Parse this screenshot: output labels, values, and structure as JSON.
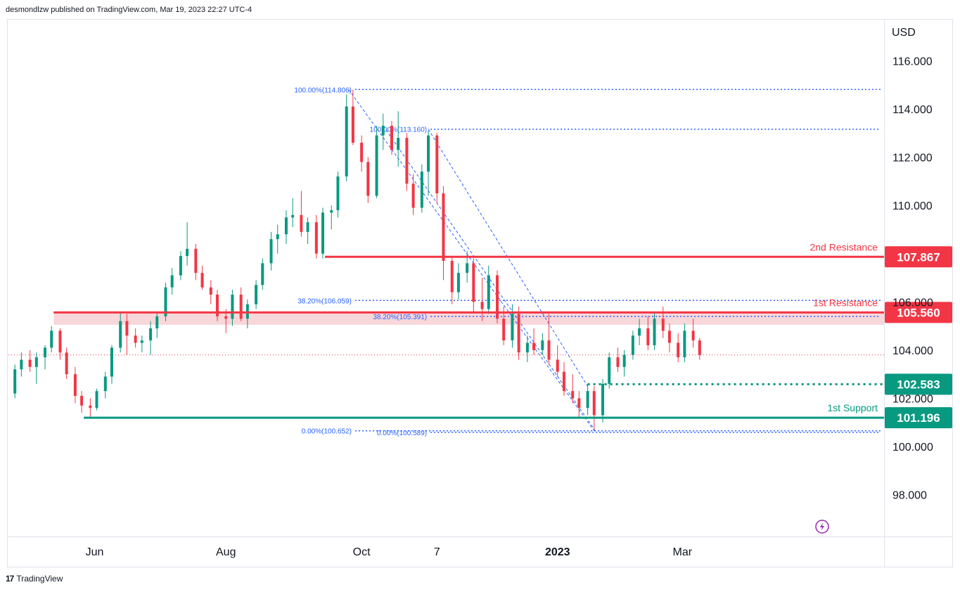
{
  "header": {
    "publish_line": "desmondlzw published on TradingView.com, Mar 19, 2023 22:27 UTC-4"
  },
  "footer": {
    "brand": "TradingView",
    "logo_icon": "tradingview-logo-icon"
  },
  "colors": {
    "up": "#089981",
    "down": "#f23645",
    "resistance": "#f23645",
    "support": "#089981",
    "fib": "#2962ff",
    "zone": "#f8d7da"
  },
  "chart_data": {
    "type": "candlestick",
    "currency_label": "USD",
    "ylim": [
      96.3,
      117.7
    ],
    "y_ticks": [
      {
        "value": 116,
        "label": "116.000"
      },
      {
        "value": 114,
        "label": "114.000"
      },
      {
        "value": 112,
        "label": "112.000"
      },
      {
        "value": 110,
        "label": "110.000"
      },
      {
        "value": 106,
        "label": "106.000"
      },
      {
        "value": 104,
        "label": "104.000"
      },
      {
        "value": 102,
        "label": "102.000"
      },
      {
        "value": 100,
        "label": "100.000"
      },
      {
        "value": 98,
        "label": "98.000"
      }
    ],
    "x_ticks": [
      {
        "date": "2022-06-01",
        "label": "Jun"
      },
      {
        "date": "2022-08-01",
        "label": "Aug"
      },
      {
        "date": "2022-10-03",
        "label": "Oct"
      },
      {
        "date": "2022-11-07",
        "label": "7"
      },
      {
        "date": "2023-01-02",
        "label": "2023",
        "bold": true
      },
      {
        "date": "2023-03-01",
        "label": "Mar"
      }
    ],
    "levels": [
      {
        "name": "2nd Resistance",
        "value": 107.867,
        "kind": "resistance",
        "start": "2022-09-16"
      },
      {
        "name": "1st Resistance",
        "value": 105.56,
        "kind": "resistance",
        "start": "2022-05-13",
        "zone_low": 105.05
      },
      {
        "name": "",
        "value": 102.583,
        "kind": "support-dotted",
        "start": "2023-01-16"
      },
      {
        "name": "1st Support",
        "value": 101.196,
        "kind": "support",
        "start": "2022-05-27"
      }
    ],
    "current_price": 103.8,
    "fib_labels": [
      {
        "text": "100.00%(114.806)",
        "value": 114.806,
        "start": "2022-09-30"
      },
      {
        "text": "38.20%(106.059)",
        "value": 106.059,
        "start": "2022-09-30"
      },
      {
        "text": "0.00%(100.652)",
        "value": 100.652,
        "start": "2022-09-30"
      },
      {
        "text": "100.00%(113.160)",
        "value": 113.16,
        "start": "2022-11-04"
      },
      {
        "text": "38.20%(105.391)",
        "value": 105.391,
        "start": "2022-11-04"
      },
      {
        "text": "0.00%(100.589)",
        "value": 100.589,
        "start": "2022-11-04"
      }
    ],
    "fib_lines": [
      {
        "from": [
          "2022-09-27",
          114.806
        ],
        "to": [
          "2023-01-19",
          100.652
        ]
      },
      {
        "from": [
          "2022-10-13",
          113.3
        ],
        "to": [
          "2023-01-20",
          100.6
        ]
      },
      {
        "from": [
          "2022-11-03",
          113.16
        ],
        "to": [
          "2023-01-16",
          102.5
        ]
      }
    ],
    "candles": [
      [
        "2022-04-25",
        102.2,
        103.4,
        102.0,
        103.2
      ],
      [
        "2022-04-28",
        103.2,
        103.9,
        102.9,
        103.6
      ],
      [
        "2022-05-02",
        103.6,
        104.0,
        103.1,
        103.3
      ],
      [
        "2022-05-05",
        103.3,
        103.9,
        102.6,
        103.7
      ],
      [
        "2022-05-09",
        103.7,
        104.2,
        103.2,
        104.1
      ],
      [
        "2022-05-12",
        104.1,
        105.0,
        103.9,
        104.8
      ],
      [
        "2022-05-16",
        104.8,
        104.9,
        103.6,
        103.9
      ],
      [
        "2022-05-19",
        103.9,
        104.1,
        102.8,
        103.0
      ],
      [
        "2022-05-23",
        103.0,
        103.3,
        101.8,
        102.1
      ],
      [
        "2022-05-26",
        102.1,
        102.3,
        101.4,
        101.7
      ],
      [
        "2022-05-30",
        101.7,
        102.0,
        101.2,
        101.6
      ],
      [
        "2022-06-02",
        101.6,
        102.4,
        101.5,
        102.3
      ],
      [
        "2022-06-06",
        102.3,
        103.1,
        102.0,
        102.9
      ],
      [
        "2022-06-09",
        102.9,
        104.2,
        102.6,
        104.1
      ],
      [
        "2022-06-13",
        104.1,
        105.6,
        103.9,
        105.2
      ],
      [
        "2022-06-16",
        105.2,
        105.5,
        103.8,
        104.6
      ],
      [
        "2022-06-20",
        104.6,
        104.9,
        104.1,
        104.3
      ],
      [
        "2022-06-23",
        104.3,
        104.6,
        103.9,
        104.4
      ],
      [
        "2022-06-27",
        104.4,
        105.2,
        103.8,
        104.9
      ],
      [
        "2022-06-30",
        104.9,
        105.6,
        104.5,
        105.4
      ],
      [
        "2022-07-04",
        105.4,
        106.8,
        105.2,
        106.6
      ],
      [
        "2022-07-07",
        106.6,
        107.4,
        106.3,
        107.1
      ],
      [
        "2022-07-11",
        107.1,
        108.1,
        106.9,
        107.9
      ],
      [
        "2022-07-14",
        107.9,
        109.3,
        107.5,
        108.2
      ],
      [
        "2022-07-18",
        108.2,
        108.4,
        106.9,
        107.2
      ],
      [
        "2022-07-21",
        107.2,
        107.5,
        106.5,
        106.6
      ],
      [
        "2022-07-25",
        106.6,
        106.9,
        105.9,
        106.3
      ],
      [
        "2022-07-28",
        106.3,
        106.5,
        105.2,
        105.4
      ],
      [
        "2022-08-01",
        105.4,
        105.7,
        104.7,
        105.3
      ],
      [
        "2022-08-04",
        105.3,
        106.5,
        105.0,
        106.3
      ],
      [
        "2022-08-08",
        106.3,
        106.6,
        105.2,
        105.3
      ],
      [
        "2022-08-11",
        105.3,
        106.1,
        104.9,
        105.9
      ],
      [
        "2022-08-15",
        105.9,
        106.9,
        105.7,
        106.7
      ],
      [
        "2022-08-18",
        106.7,
        107.8,
        106.5,
        107.6
      ],
      [
        "2022-08-22",
        107.6,
        108.9,
        107.3,
        108.6
      ],
      [
        "2022-08-25",
        108.6,
        109.2,
        108.0,
        108.8
      ],
      [
        "2022-08-29",
        108.8,
        109.8,
        108.4,
        109.5
      ],
      [
        "2022-09-01",
        109.5,
        110.3,
        109.1,
        109.6
      ],
      [
        "2022-09-05",
        109.6,
        110.6,
        108.7,
        108.9
      ],
      [
        "2022-09-08",
        108.9,
        109.5,
        108.4,
        109.3
      ],
      [
        "2022-09-12",
        109.3,
        109.6,
        107.8,
        108.0
      ],
      [
        "2022-09-15",
        108.0,
        109.9,
        107.8,
        109.7
      ],
      [
        "2022-09-19",
        109.7,
        110.0,
        109.0,
        109.8
      ],
      [
        "2022-09-22",
        109.8,
        111.4,
        109.5,
        111.2
      ],
      [
        "2022-09-26",
        111.2,
        114.6,
        111.0,
        114.1
      ],
      [
        "2022-09-29",
        114.1,
        114.8,
        112.5,
        112.6
      ],
      [
        "2022-10-03",
        112.6,
        112.9,
        111.4,
        111.8
      ],
      [
        "2022-10-06",
        111.8,
        112.0,
        110.1,
        110.4
      ],
      [
        "2022-10-10",
        110.4,
        113.3,
        110.3,
        112.9
      ],
      [
        "2022-10-13",
        112.9,
        113.8,
        112.3,
        113.3
      ],
      [
        "2022-10-17",
        113.3,
        113.5,
        112.1,
        112.3
      ],
      [
        "2022-10-20",
        112.3,
        113.9,
        111.6,
        112.8
      ],
      [
        "2022-10-24",
        112.8,
        113.0,
        110.6,
        110.9
      ],
      [
        "2022-10-27",
        110.9,
        111.3,
        109.6,
        109.9
      ],
      [
        "2022-10-31",
        109.9,
        111.7,
        109.7,
        111.4
      ],
      [
        "2022-11-03",
        111.4,
        113.1,
        110.4,
        112.9
      ],
      [
        "2022-11-07",
        112.9,
        113.0,
        110.1,
        110.5
      ],
      [
        "2022-11-10",
        110.5,
        110.8,
        106.9,
        107.7
      ],
      [
        "2022-11-14",
        107.7,
        107.9,
        105.9,
        106.4
      ],
      [
        "2022-11-17",
        106.4,
        107.6,
        106.1,
        107.2
      ],
      [
        "2022-11-21",
        107.2,
        108.1,
        106.8,
        107.6
      ],
      [
        "2022-11-24",
        107.6,
        107.8,
        105.6,
        106.0
      ],
      [
        "2022-11-28",
        106.0,
        107.0,
        105.2,
        105.7
      ],
      [
        "2022-12-01",
        105.7,
        107.5,
        105.5,
        107.1
      ],
      [
        "2022-12-05",
        107.1,
        107.3,
        105.1,
        105.3
      ],
      [
        "2022-12-08",
        105.3,
        105.8,
        104.2,
        104.4
      ],
      [
        "2022-12-12",
        104.4,
        105.9,
        104.1,
        105.5
      ],
      [
        "2022-12-15",
        105.5,
        105.8,
        103.6,
        103.9
      ],
      [
        "2022-12-19",
        103.9,
        104.6,
        103.5,
        104.3
      ],
      [
        "2022-12-22",
        104.3,
        104.9,
        103.8,
        104.0
      ],
      [
        "2022-12-26",
        104.0,
        104.7,
        103.8,
        104.4
      ],
      [
        "2022-12-29",
        104.4,
        105.5,
        103.4,
        103.6
      ],
      [
        "2023-01-02",
        103.6,
        104.2,
        102.9,
        103.1
      ],
      [
        "2023-01-05",
        103.1,
        103.5,
        102.1,
        102.3
      ],
      [
        "2023-01-09",
        102.3,
        103.0,
        101.8,
        102.0
      ],
      [
        "2023-01-12",
        102.0,
        102.3,
        101.2,
        101.6
      ],
      [
        "2023-01-16",
        101.6,
        102.6,
        101.3,
        102.3
      ],
      [
        "2023-01-19",
        102.3,
        102.5,
        100.7,
        101.3
      ],
      [
        "2023-01-23",
        101.3,
        102.8,
        101.0,
        102.6
      ],
      [
        "2023-01-26",
        102.6,
        103.9,
        102.4,
        103.7
      ],
      [
        "2023-01-30",
        103.7,
        104.1,
        103.1,
        103.3
      ],
      [
        "2023-02-02",
        103.3,
        104.0,
        102.9,
        103.8
      ],
      [
        "2023-02-06",
        103.8,
        104.8,
        103.6,
        104.6
      ],
      [
        "2023-02-09",
        104.6,
        105.3,
        104.2,
        104.9
      ],
      [
        "2023-02-13",
        104.9,
        105.4,
        104.0,
        104.2
      ],
      [
        "2023-02-16",
        104.2,
        105.6,
        104.0,
        105.3
      ],
      [
        "2023-02-20",
        105.3,
        105.8,
        104.5,
        104.8
      ],
      [
        "2023-02-23",
        104.8,
        105.1,
        103.9,
        104.3
      ],
      [
        "2023-02-27",
        104.3,
        104.7,
        103.5,
        103.7
      ],
      [
        "2023-03-02",
        103.7,
        105.1,
        103.5,
        104.8
      ],
      [
        "2023-03-06",
        104.8,
        105.3,
        104.1,
        104.4
      ],
      [
        "2023-03-09",
        104.4,
        104.5,
        103.6,
        103.8
      ]
    ]
  }
}
